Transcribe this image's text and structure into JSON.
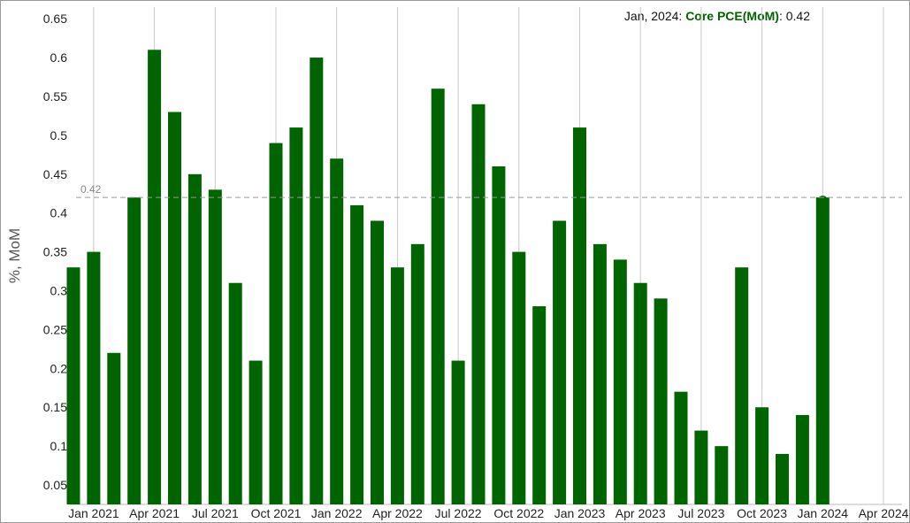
{
  "tooltip": {
    "date": "Jan, 2024",
    "series": "Core PCE(MoM)",
    "value": "0.42"
  },
  "colors": {
    "bar": "#006400",
    "grid": "#c8c8c8",
    "reference_line": "#999999"
  },
  "chart_data": {
    "type": "bar",
    "ylabel": "%, MoM",
    "ylim": [
      0.025,
      0.665
    ],
    "yticks": [
      "0.05",
      "0.1",
      "0.15",
      "0.2",
      "0.25",
      "0.3",
      "0.35",
      "0.4",
      "0.45",
      "0.5",
      "0.55",
      "0.6",
      "0.65"
    ],
    "xticks": [
      "Jan 2021",
      "Apr 2021",
      "Jul 2021",
      "Oct 2021",
      "Jan 2022",
      "Apr 2022",
      "Jul 2022",
      "Oct 2022",
      "Jan 2023",
      "Apr 2023",
      "Jul 2023",
      "Oct 2023",
      "Jan 2024",
      "Apr 2024"
    ],
    "grid": "vertical",
    "reference_line": {
      "value": 0.42,
      "label": "0.42"
    },
    "categories": [
      "2020-12",
      "2021-01",
      "2021-02",
      "2021-03",
      "2021-04",
      "2021-05",
      "2021-06",
      "2021-07",
      "2021-08",
      "2021-09",
      "2021-10",
      "2021-11",
      "2021-12",
      "2022-01",
      "2022-02",
      "2022-03",
      "2022-04",
      "2022-05",
      "2022-06",
      "2022-07",
      "2022-08",
      "2022-09",
      "2022-10",
      "2022-11",
      "2022-12",
      "2023-01",
      "2023-02",
      "2023-03",
      "2023-04",
      "2023-05",
      "2023-06",
      "2023-07",
      "2023-08",
      "2023-09",
      "2023-10",
      "2023-11",
      "2023-12",
      "2024-01",
      "2024-02",
      "2024-03",
      "2024-04"
    ],
    "series": [
      {
        "name": "Core PCE(MoM)",
        "values": [
          0.33,
          0.35,
          0.22,
          0.42,
          0.61,
          0.53,
          0.45,
          0.43,
          0.31,
          0.21,
          0.49,
          0.51,
          0.6,
          0.47,
          0.41,
          0.39,
          0.33,
          0.36,
          0.56,
          0.21,
          0.54,
          0.46,
          0.35,
          0.28,
          0.39,
          0.51,
          0.36,
          0.34,
          0.31,
          0.29,
          0.17,
          0.12,
          0.1,
          0.33,
          0.15,
          0.09,
          0.14,
          0.42,
          null,
          null,
          null
        ]
      }
    ]
  }
}
